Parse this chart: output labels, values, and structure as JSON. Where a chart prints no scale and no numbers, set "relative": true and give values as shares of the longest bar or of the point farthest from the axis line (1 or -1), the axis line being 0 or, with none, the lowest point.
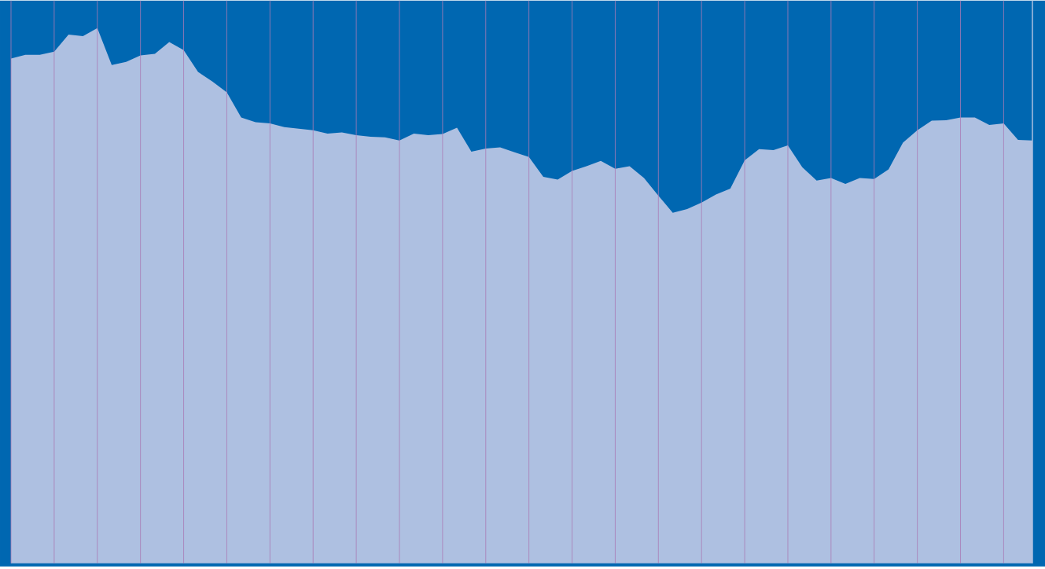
{
  "chart_data": {
    "type": "area",
    "relative": true,
    "grid": "x",
    "color": "#aec0e1",
    "categories": [
      null,
      null,
      null,
      null,
      null,
      null,
      null,
      null,
      null,
      null,
      null,
      null,
      null,
      null,
      null,
      null,
      null,
      null,
      null,
      null,
      null,
      null,
      null,
      null,
      null,
      null,
      null,
      null,
      null,
      null,
      null,
      null,
      null,
      null,
      null,
      null,
      null,
      null,
      null,
      null,
      null,
      null,
      null,
      null,
      null,
      null,
      null,
      null,
      null,
      null,
      null,
      null,
      null,
      null,
      null,
      null,
      null,
      null,
      null,
      null,
      null,
      null,
      null,
      null,
      null,
      null,
      null,
      null,
      null,
      null,
      null,
      null
    ],
    "values": [
      0.943,
      0.95,
      0.95,
      0.956,
      0.988,
      0.985,
      1,
      0.931,
      0.937,
      0.949,
      0.952,
      0.974,
      0.959,
      0.918,
      0.9,
      0.88,
      0.833,
      0.824,
      0.822,
      0.815,
      0.812,
      0.809,
      0.803,
      0.805,
      0.8,
      0.797,
      0.796,
      0.79,
      0.803,
      0.8,
      0.802,
      0.814,
      0.769,
      0.775,
      0.777,
      0.768,
      0.759,
      0.722,
      0.717,
      0.733,
      0.742,
      0.752,
      0.737,
      0.742,
      0.72,
      0.687,
      0.655,
      0.662,
      0.674,
      0.689,
      0.7,
      0.753,
      0.774,
      0.772,
      0.781,
      0.74,
      0.715,
      0.72,
      0.709,
      0.72,
      0.718,
      0.736,
      0.786,
      0.809,
      0.827,
      0.828,
      0.833,
      0.833,
      0.819,
      0.822,
      0.791,
      0.79
    ]
  }
}
